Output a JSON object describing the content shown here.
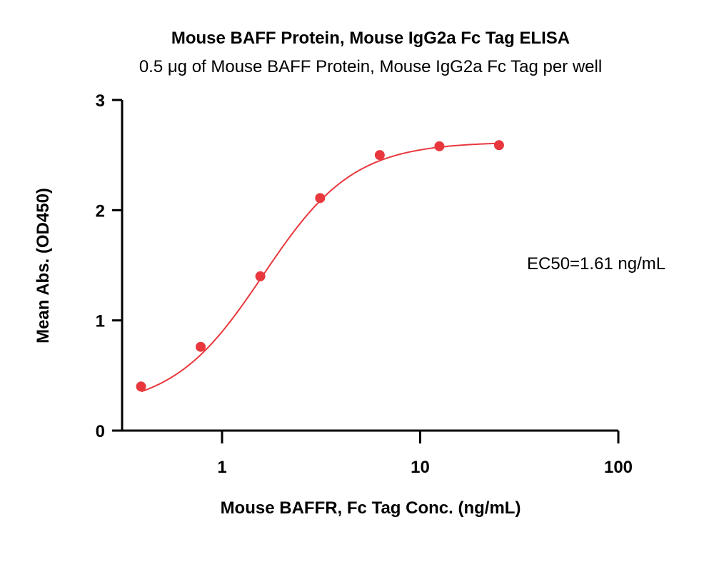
{
  "chart_data": {
    "type": "scatter",
    "title": "Mouse BAFF Protein, Mouse IgG2a Fc Tag ELISA",
    "subtitle": "0.5 μg of Mouse BAFF Protein, Mouse IgG2a Fc Tag per well",
    "xlabel": "Mouse BAFFR, Fc Tag Conc. (ng/mL)",
    "ylabel": "Mean Abs. (OD450)",
    "x_scale": "log",
    "xlim": [
      0.3,
      100
    ],
    "ylim": [
      0,
      3
    ],
    "x_ticks": [
      1,
      10,
      100
    ],
    "x_tick_labels": [
      "1",
      "10",
      "100"
    ],
    "y_ticks": [
      0,
      1,
      2,
      3
    ],
    "y_tick_labels": [
      "0",
      "1",
      "2",
      "3"
    ],
    "grid": false,
    "series": [
      {
        "x": [
          0.39,
          0.78,
          1.56,
          3.125,
          6.25,
          12.5,
          25
        ],
        "y": [
          0.4,
          0.76,
          1.4,
          2.11,
          2.5,
          2.58,
          2.59
        ]
      }
    ],
    "fit": {
      "type": "4PL",
      "bottom": 0.2,
      "top": 2.62,
      "ec50": 1.61,
      "hill": 1.9
    },
    "annotation": "EC50=1.61 ng/mL",
    "color": "#e8383d"
  }
}
